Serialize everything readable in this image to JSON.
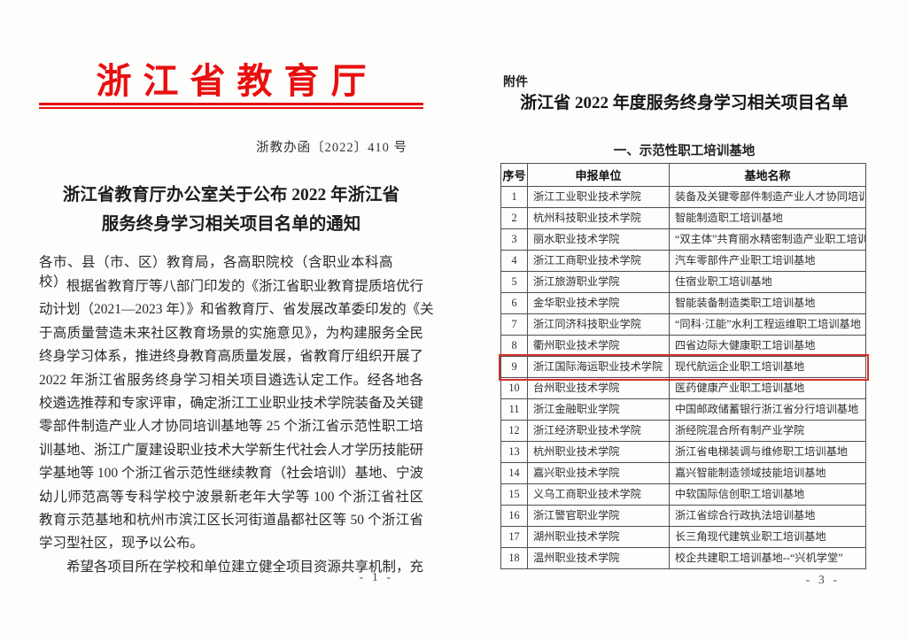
{
  "colors": {
    "masthead_red": "#e8100f",
    "highlight_red": "#d6322c"
  },
  "left_page": {
    "masthead": "浙江省教育厅",
    "doc_number": "浙教办函〔2022〕410 号",
    "title_line1": "浙江省教育厅办公室关于公布 2022 年浙江省",
    "title_line2": "服务终身学习相关项目名单的通知",
    "salutation": "各市、县（市、区）教育局，各高职院校（含职业本科高校）:",
    "body_lines": [
      "　　根据省教育厅等八部门印发的《浙江省职业教育提质培优行",
      "动计划（2021—2023 年）》和省教育厅、省发展改革委印发的《关",
      "于高质量营造未来社区教育场景的实施意见》，为构建服务全民",
      "终身学习体系，推进终身教育高质量发展，省教育厅组织开展了",
      "2022 年浙江省服务终身学习相关项目遴选认定工作。经各地各",
      "校遴选推荐和专家评审，确定浙江工业职业技术学院装备及关键",
      "零部件制造产业人才协同培训基地等 25 个浙江省示范性职工培",
      "训基地、浙江广厦建设职业技术大学新生代社会人才学历技能研",
      "学基地等 100 个浙江省示范性继续教育（社会培训）基地、宁波",
      "幼儿师范高等专科学校宁波景新老年大学等 100 个浙江省社区",
      "教育示范基地和杭州市滨江区长河街道晶都社区等 50 个浙江省",
      "学习型社区，现予以公布。",
      "　　希望各项目所在学校和单位建立健全项目资源共享机制，充"
    ],
    "page_number": "- 1 -"
  },
  "right_page": {
    "attachment_label": "附件",
    "title": "浙江省 2022 年度服务终身学习相关项目名单",
    "section_title": "一、示范性职工培训基地",
    "table": {
      "headers": [
        "序号",
        "申报单位",
        "基地名称"
      ],
      "highlighted_row": 9,
      "rows": [
        [
          "1",
          "浙江工业职业技术学院",
          "装备及关键零部件制造产业人才协同培训基地"
        ],
        [
          "2",
          "杭州科技职业技术学院",
          "智能制造职工培训基地"
        ],
        [
          "3",
          "丽水职业技术学院",
          "“双主体”共育丽水精密制造产业职工培训基地"
        ],
        [
          "4",
          "浙江工商职业技术学院",
          "汽车零部件产业职工培训基地"
        ],
        [
          "5",
          "浙江旅游职业学院",
          "住宿业职工培训基地"
        ],
        [
          "6",
          "金华职业技术学院",
          "智能装备制造类职工培训基地"
        ],
        [
          "7",
          "浙江同济科技职业学院",
          "“同科·江能”水利工程运维职工培训基地"
        ],
        [
          "8",
          "衢州职业技术学院",
          "四省边际大健康职工培训基地"
        ],
        [
          "9",
          "浙江国际海运职业技术学院",
          "现代航运企业职工培训基地"
        ],
        [
          "10",
          "台州职业技术学院",
          "医药健康产业职工培训基地"
        ],
        [
          "11",
          "浙江金融职业学院",
          "中国邮政储蓄银行浙江省分行培训基地"
        ],
        [
          "12",
          "浙江经济职业技术学院",
          "浙经院混合所有制产业学院"
        ],
        [
          "13",
          "杭州职业技术学院",
          "浙江省电梯装调与维修职工培训基地"
        ],
        [
          "14",
          "嘉兴职业技术学院",
          "嘉兴智能制造领域技能培训基地"
        ],
        [
          "15",
          "义乌工商职业技术学院",
          "中软国际信创职工培训基地"
        ],
        [
          "16",
          "浙江警官职业学院",
          "浙江省综合行政执法培训基地"
        ],
        [
          "17",
          "湖州职业技术学院",
          "长三角现代建筑业职工培训基地"
        ],
        [
          "18",
          "温州职业技术学院",
          "校企共建职工培训基地--“兴机学堂”"
        ]
      ]
    },
    "page_number": "- 3 -"
  }
}
